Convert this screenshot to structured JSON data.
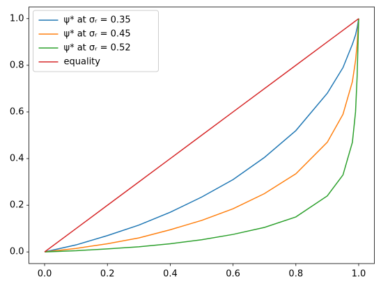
{
  "chart_data": {
    "type": "line",
    "x": [
      0,
      0.1,
      0.2,
      0.3,
      0.4,
      0.5,
      0.6,
      0.7,
      0.8,
      0.9,
      0.95,
      0.98,
      0.99,
      0.995,
      1
    ],
    "series": [
      {
        "name": "ψ* at σᵣ = 0.35",
        "color": "#1f77b4",
        "values": [
          0,
          0.03,
          0.07,
          0.115,
          0.17,
          0.235,
          0.31,
          0.405,
          0.52,
          0.68,
          0.79,
          0.89,
          0.93,
          0.96,
          1
        ]
      },
      {
        "name": "ψ* at σᵣ = 0.45",
        "color": "#ff7f0e",
        "values": [
          0,
          0.015,
          0.035,
          0.06,
          0.095,
          0.135,
          0.185,
          0.25,
          0.335,
          0.47,
          0.59,
          0.73,
          0.82,
          0.89,
          1
        ]
      },
      {
        "name": "ψ* at σᵣ = 0.52",
        "color": "#2ca02c",
        "values": [
          0,
          0.005,
          0.013,
          0.022,
          0.035,
          0.052,
          0.075,
          0.105,
          0.15,
          0.24,
          0.33,
          0.47,
          0.6,
          0.75,
          1
        ]
      },
      {
        "name": "equality",
        "color": "#d62728",
        "values": [
          0,
          0.1,
          0.2,
          0.3,
          0.4,
          0.5,
          0.6,
          0.7,
          0.8,
          0.9,
          0.95,
          0.98,
          0.99,
          0.995,
          1
        ]
      }
    ],
    "xlim": [
      -0.05,
      1.05
    ],
    "ylim": [
      -0.05,
      1.05
    ],
    "xticks": [
      {
        "value": 0,
        "label": "0.0"
      },
      0.2,
      0.4,
      0.6,
      0.8,
      {
        "value": 1,
        "label": "1.0"
      }
    ],
    "yticks": [
      {
        "value": 0,
        "label": "0.0"
      },
      0.2,
      0.4,
      0.6,
      0.8,
      {
        "value": 1,
        "label": "1.0"
      }
    ],
    "legend": "upper left",
    "grid": false
  }
}
